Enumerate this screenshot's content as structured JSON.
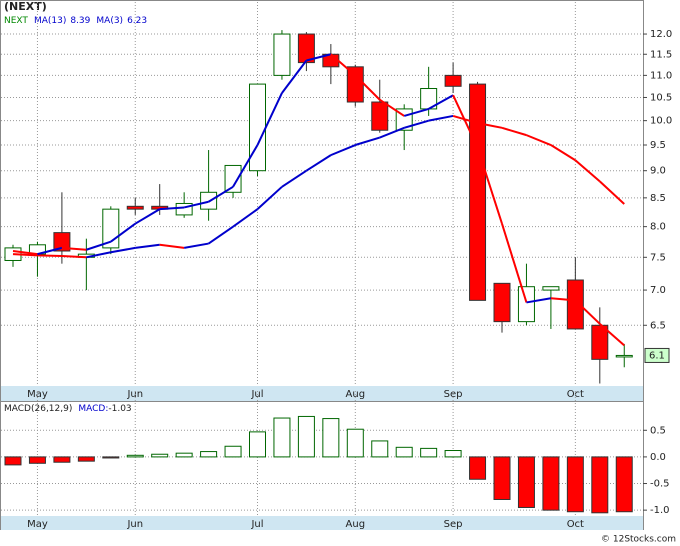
{
  "chart_data": [
    {
      "type": "candlestick",
      "title": "(NEXT)",
      "name": "NEXT",
      "categories": [
        null,
        "May",
        null,
        null,
        null,
        "Jun",
        null,
        null,
        null,
        null,
        "Jul",
        null,
        null,
        null,
        "Aug",
        null,
        null,
        null,
        "Sep",
        null,
        null,
        null,
        null,
        "Oct",
        null,
        null
      ],
      "open": [
        7.45,
        7.55,
        7.9,
        7.5,
        7.65,
        8.35,
        8.35,
        8.2,
        8.3,
        8.6,
        9.0,
        11.0,
        12.0,
        11.5,
        11.2,
        10.4,
        9.8,
        10.25,
        11.0,
        10.8,
        7.1,
        6.55,
        7.0,
        7.15,
        6.5,
        6.1
      ],
      "high": [
        7.7,
        7.75,
        8.6,
        7.8,
        8.35,
        8.5,
        8.75,
        8.6,
        9.4,
        9.1,
        10.8,
        12.1,
        12.05,
        11.75,
        11.25,
        10.9,
        10.35,
        11.2,
        11.3,
        10.85,
        7.1,
        7.4,
        7.05,
        7.5,
        6.75,
        6.25
      ],
      "low": [
        7.35,
        7.2,
        7.4,
        7.0,
        7.55,
        8.2,
        8.2,
        8.15,
        8.1,
        8.5,
        8.9,
        10.9,
        11.1,
        10.8,
        10.3,
        9.75,
        9.4,
        10.1,
        10.6,
        6.85,
        6.4,
        6.5,
        6.45,
        6.45,
        5.75,
        5.95
      ],
      "close": [
        7.65,
        7.7,
        7.6,
        7.55,
        8.3,
        8.3,
        8.3,
        8.4,
        8.6,
        9.1,
        10.8,
        12.0,
        11.3,
        11.2,
        10.4,
        9.8,
        10.25,
        10.7,
        10.75,
        6.85,
        6.55,
        7.05,
        7.05,
        6.45,
        6.05,
        6.1
      ],
      "up_color": "#ffffff",
      "down_color": "#ff0000",
      "candle_edge": "#006600",
      "series": [
        {
          "name": "MA(13)",
          "values": [
            7.55,
            7.53,
            7.52,
            7.5,
            7.58,
            7.65,
            7.7,
            7.65,
            7.72,
            8.0,
            8.3,
            8.7,
            9.0,
            9.3,
            9.5,
            9.65,
            9.85,
            10.0,
            10.1,
            9.95,
            9.85,
            9.7,
            9.5,
            9.2,
            8.8,
            8.39
          ]
        },
        {
          "name": "MA(3)",
          "values": [
            7.6,
            7.55,
            7.65,
            7.62,
            7.75,
            8.05,
            8.3,
            8.33,
            8.43,
            8.7,
            9.5,
            10.6,
            11.35,
            11.5,
            11.0,
            10.45,
            10.1,
            10.25,
            10.55,
            9.45,
            8.05,
            6.82,
            6.88,
            6.85,
            6.52,
            6.23
          ]
        }
      ],
      "line_up_color": "#0000cc",
      "line_down_color": "#ff0000",
      "log_scale": true,
      "grid": true,
      "ylim": [
        5.72,
        12.57
      ],
      "yticks": [
        6.5,
        {
          "value": 7,
          "label": "7.0"
        },
        7.5,
        {
          "value": 8,
          "label": "8.0"
        },
        8.5,
        {
          "value": 9,
          "label": "9.0"
        },
        9.5,
        {
          "value": 10,
          "label": "10.0"
        },
        10.5,
        {
          "value": 11,
          "label": "11.0"
        },
        11.5,
        {
          "value": 12,
          "label": "12.0"
        }
      ]
    },
    {
      "type": "bar",
      "name": "MACD(26,12,9)",
      "value_name": "MACD:",
      "categories": [
        null,
        "May",
        null,
        null,
        null,
        "Jun",
        null,
        null,
        null,
        null,
        "Jul",
        null,
        null,
        null,
        "Aug",
        null,
        null,
        null,
        "Sep",
        null,
        null,
        null,
        null,
        "Oct",
        null,
        null
      ],
      "values": [
        -0.15,
        -0.12,
        -0.1,
        -0.08,
        -0.02,
        0.03,
        0.05,
        0.07,
        0.1,
        0.2,
        0.47,
        0.73,
        0.76,
        0.72,
        0.52,
        0.3,
        0.18,
        0.16,
        0.12,
        -0.42,
        -0.8,
        -0.95,
        -1.0,
        -1.03,
        -1.05,
        -1.03
      ],
      "positive_color": "#ffffff",
      "negative_color": "#ff0000",
      "edge_color": "#006600",
      "grid": true,
      "ylim": [
        -1.11,
        1.05
      ],
      "yticks": [
        0.5,
        {
          "value": 0,
          "label": "0.0"
        },
        -0.5,
        {
          "value": -1,
          "label": "-1.0"
        }
      ]
    }
  ],
  "footer": "© 12Stocks.com"
}
